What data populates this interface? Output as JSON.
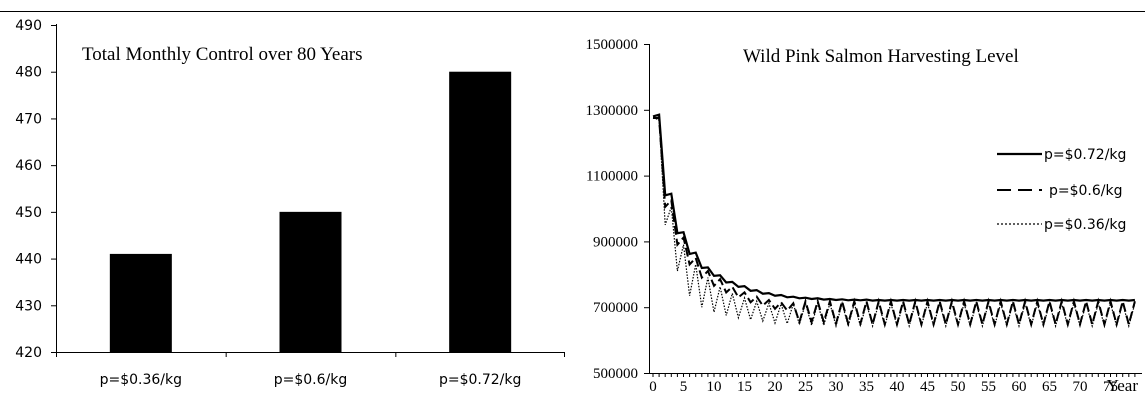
{
  "chart_data": [
    {
      "type": "bar",
      "title": "Total Monthly Control over 80 Years",
      "categories": [
        "p=$0.36/kg",
        "p=$0.6/kg",
        "p=$0.72/kg"
      ],
      "values": [
        441,
        450,
        480
      ],
      "ylim": [
        420,
        490
      ],
      "yticks": [
        "420",
        "430",
        "440",
        "450",
        "460",
        "470",
        "480",
        "490"
      ],
      "xlabel": "",
      "ylabel": "",
      "grid": false,
      "colors": {
        "bar": "#000000"
      }
    },
    {
      "type": "line",
      "title": "Wild Pink Salmon Harvesting Level",
      "xlabel": "Year",
      "ylabel": "",
      "xlim": [
        0,
        80
      ],
      "ylim": [
        500000,
        1500000
      ],
      "xticks": [
        "0",
        "5",
        "10",
        "15",
        "20",
        "25",
        "30",
        "35",
        "40",
        "45",
        "50",
        "55",
        "60",
        "65",
        "70",
        "75"
      ],
      "yticks": [
        "500000",
        "700000",
        "900000",
        "1100000",
        "1300000",
        "1500000"
      ],
      "legend_position": "right",
      "grid": false,
      "x": [
        0,
        1,
        2,
        3,
        4,
        5,
        6,
        7,
        8,
        9,
        10,
        11,
        12,
        13,
        14,
        15,
        16,
        17,
        18,
        19,
        20,
        21,
        22,
        23,
        24,
        25,
        26,
        27,
        28,
        29,
        30,
        31,
        32,
        33,
        34,
        35,
        36,
        37,
        38,
        39,
        40,
        41,
        42,
        43,
        44,
        45,
        46,
        47,
        48,
        49,
        50,
        51,
        52,
        53,
        54,
        55,
        56,
        57,
        58,
        59,
        60,
        61,
        62,
        63,
        64,
        65,
        66,
        67,
        68,
        69,
        70,
        71,
        72,
        73,
        74,
        75,
        76,
        77,
        78,
        79
      ],
      "series": [
        {
          "name": "p=$0.72/kg",
          "style": "solid",
          "values": [
            1280000,
            1285000,
            1040000,
            1045000,
            925000,
            928000,
            862000,
            866000,
            819000,
            821000,
            795000,
            797000,
            775000,
            777000,
            762000,
            764000,
            750000,
            752000,
            741000,
            743000,
            735000,
            737000,
            730000,
            732000,
            727000,
            729000,
            725000,
            727000,
            723000,
            725000,
            722000,
            724000,
            721000,
            723000,
            721000,
            723000,
            720000,
            722000,
            720000,
            722000,
            720000,
            722000,
            720000,
            722000,
            720000,
            722000,
            720000,
            722000,
            720000,
            722000,
            720000,
            722000,
            720000,
            722000,
            720000,
            722000,
            720000,
            722000,
            720000,
            722000,
            720000,
            722000,
            720000,
            722000,
            720000,
            722000,
            720000,
            722000,
            720000,
            722000,
            720000,
            722000,
            720000,
            722000,
            720000,
            722000,
            720000,
            722000,
            720000,
            722000
          ]
        },
        {
          "name": "p=$0.6/kg",
          "style": "dashed",
          "values": [
            1275000,
            1275000,
            1005000,
            1025000,
            890000,
            912000,
            830000,
            850000,
            790000,
            810000,
            765000,
            785000,
            745000,
            762000,
            730000,
            745000,
            715000,
            732000,
            705000,
            722000,
            695000,
            715000,
            690000,
            712000,
            655000,
            718000,
            655000,
            718000,
            655000,
            718000,
            650000,
            718000,
            650000,
            718000,
            650000,
            718000,
            648000,
            718000,
            648000,
            718000,
            648000,
            718000,
            648000,
            718000,
            648000,
            718000,
            648000,
            718000,
            648000,
            718000,
            648000,
            718000,
            648000,
            718000,
            648000,
            718000,
            648000,
            718000,
            648000,
            718000,
            648000,
            718000,
            648000,
            718000,
            648000,
            718000,
            648000,
            718000,
            648000,
            718000,
            648000,
            718000,
            648000,
            718000,
            648000,
            718000,
            648000,
            718000,
            648000,
            718000
          ]
        },
        {
          "name": "p=$0.36/kg",
          "style": "dotted",
          "values": [
            1275000,
            1270000,
            950000,
            1005000,
            810000,
            890000,
            735000,
            830000,
            700000,
            790000,
            685000,
            762000,
            675000,
            742000,
            668000,
            728000,
            662000,
            718000,
            658000,
            712000,
            652000,
            710000,
            650000,
            710000,
            648000,
            712000,
            645000,
            712000,
            645000,
            712000,
            643000,
            712000,
            643000,
            712000,
            643000,
            712000,
            643000,
            712000,
            643000,
            712000,
            643000,
            712000,
            643000,
            712000,
            643000,
            712000,
            643000,
            712000,
            643000,
            712000,
            643000,
            712000,
            643000,
            712000,
            643000,
            712000,
            643000,
            712000,
            643000,
            712000,
            643000,
            712000,
            643000,
            712000,
            643000,
            712000,
            643000,
            712000,
            643000,
            712000,
            643000,
            712000,
            643000,
            712000,
            643000,
            712000,
            643000,
            712000,
            643000,
            712000
          ]
        }
      ]
    }
  ]
}
